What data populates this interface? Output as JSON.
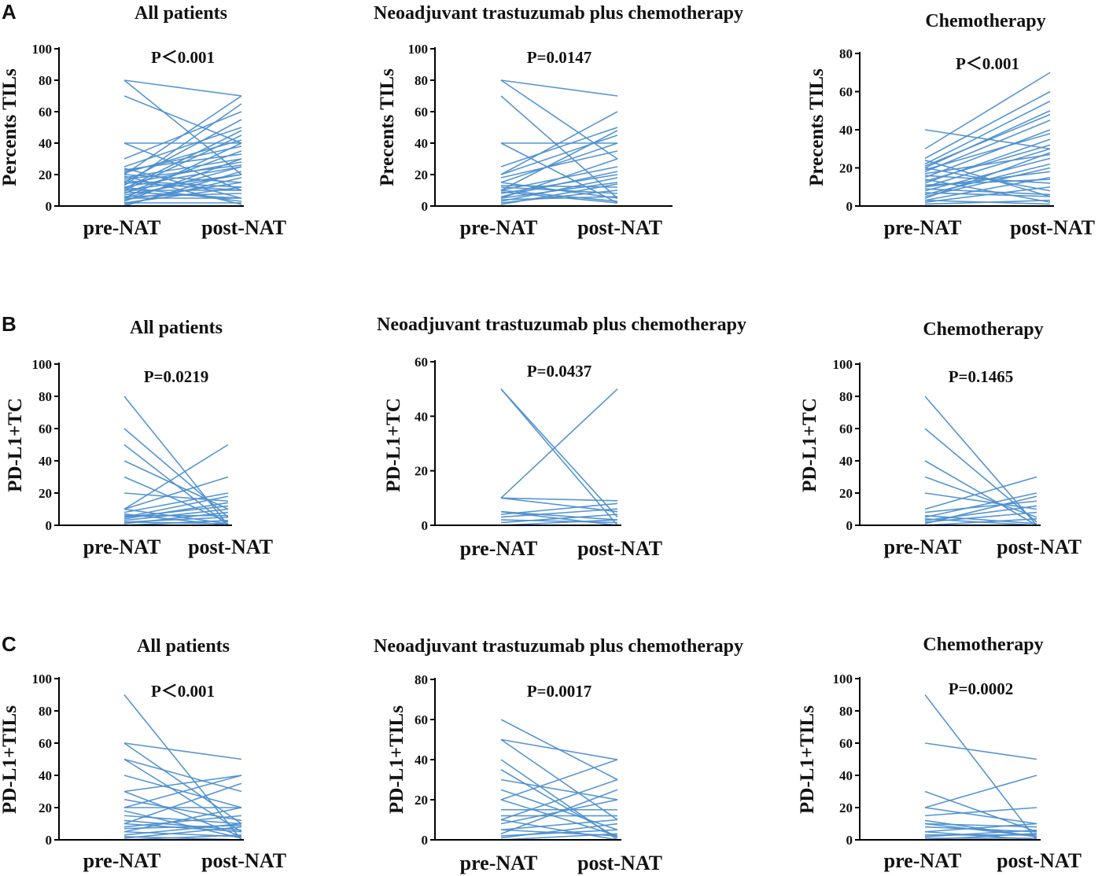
{
  "figure": {
    "rows": [
      {
        "label": "A"
      },
      {
        "label": "B"
      },
      {
        "label": "C"
      }
    ]
  },
  "chart_data": [
    {
      "type": "line",
      "row": "A",
      "title": "All patients",
      "ylabel": "Percents TILs",
      "p_value": "P＜0.001",
      "categories": [
        "pre-NAT",
        "post-NAT"
      ],
      "ylim": [
        0,
        100
      ],
      "yticks": [
        0,
        20,
        40,
        60,
        80,
        100
      ],
      "series_color": "#4d8fcf",
      "pairs": [
        [
          80,
          70
        ],
        [
          70,
          40
        ],
        [
          40,
          40
        ],
        [
          40,
          10
        ],
        [
          80,
          20
        ],
        [
          20,
          70
        ],
        [
          30,
          60
        ],
        [
          25,
          50
        ],
        [
          15,
          55
        ],
        [
          10,
          45
        ],
        [
          22,
          38
        ],
        [
          18,
          30
        ],
        [
          12,
          25
        ],
        [
          8,
          35
        ],
        [
          5,
          40
        ],
        [
          20,
          15
        ],
        [
          15,
          10
        ],
        [
          10,
          20
        ],
        [
          5,
          25
        ],
        [
          3,
          30
        ],
        [
          2,
          12
        ],
        [
          1,
          18
        ],
        [
          0,
          22
        ],
        [
          6,
          8
        ],
        [
          9,
          5
        ],
        [
          12,
          3
        ],
        [
          14,
          28
        ],
        [
          16,
          12
        ],
        [
          24,
          5
        ],
        [
          19,
          1
        ],
        [
          4,
          15
        ],
        [
          7,
          20
        ],
        [
          11,
          48
        ],
        [
          13,
          65
        ],
        [
          21,
          42
        ],
        [
          23,
          33
        ],
        [
          17,
          26
        ],
        [
          10,
          10
        ],
        [
          5,
          5
        ],
        [
          2,
          2
        ]
      ]
    },
    {
      "type": "line",
      "row": "A",
      "title": "Neoadjuvant trastuzumab plus chemotherapy",
      "ylabel": "Precents TILs",
      "p_value": "P=0.0147",
      "categories": [
        "pre-NAT",
        "post-NAT"
      ],
      "ylim": [
        0,
        100
      ],
      "yticks": [
        0,
        20,
        40,
        60,
        80,
        100
      ],
      "series_color": "#4d8fcf",
      "pairs": [
        [
          80,
          70
        ],
        [
          70,
          5
        ],
        [
          80,
          30
        ],
        [
          40,
          40
        ],
        [
          40,
          2
        ],
        [
          25,
          50
        ],
        [
          20,
          60
        ],
        [
          20,
          45
        ],
        [
          15,
          40
        ],
        [
          10,
          48
        ],
        [
          10,
          25
        ],
        [
          8,
          20
        ],
        [
          5,
          15
        ],
        [
          5,
          30
        ],
        [
          2,
          10
        ],
        [
          15,
          5
        ],
        [
          12,
          8
        ],
        [
          10,
          3
        ],
        [
          6,
          22
        ],
        [
          3,
          18
        ],
        [
          18,
          35
        ],
        [
          13,
          12
        ],
        [
          9,
          2
        ],
        [
          4,
          6
        ],
        [
          1,
          14
        ]
      ]
    },
    {
      "type": "line",
      "row": "A",
      "title": "Chemotherapy",
      "ylabel": "Precents TILs",
      "p_value": "P＜0.001",
      "categories": [
        "pre-NAT",
        "post-NAT"
      ],
      "ylim": [
        0,
        80
      ],
      "yticks": [
        0,
        20,
        40,
        60,
        80
      ],
      "series_color": "#4d8fcf",
      "pairs": [
        [
          40,
          30
        ],
        [
          30,
          70
        ],
        [
          25,
          60
        ],
        [
          22,
          55
        ],
        [
          20,
          50
        ],
        [
          18,
          45
        ],
        [
          15,
          40
        ],
        [
          12,
          35
        ],
        [
          10,
          30
        ],
        [
          8,
          25
        ],
        [
          5,
          20
        ],
        [
          3,
          15
        ],
        [
          2,
          10
        ],
        [
          24,
          5
        ],
        [
          20,
          8
        ],
        [
          16,
          12
        ],
        [
          14,
          2
        ],
        [
          10,
          18
        ],
        [
          6,
          22
        ],
        [
          4,
          28
        ],
        [
          1,
          3
        ],
        [
          7,
          5
        ],
        [
          11,
          14
        ],
        [
          13,
          32
        ],
        [
          17,
          27
        ],
        [
          19,
          38
        ],
        [
          21,
          48
        ],
        [
          9,
          6
        ],
        [
          3,
          1
        ]
      ]
    },
    {
      "type": "line",
      "row": "B",
      "title": "All patients",
      "ylabel": "PD-L1+TC",
      "p_value": "P=0.0219",
      "categories": [
        "pre-NAT",
        "post-NAT"
      ],
      "ylim": [
        0,
        100
      ],
      "yticks": [
        0,
        20,
        40,
        60,
        80,
        100
      ],
      "series_color": "#4d8fcf",
      "pairs": [
        [
          80,
          0
        ],
        [
          60,
          5
        ],
        [
          50,
          0
        ],
        [
          40,
          10
        ],
        [
          30,
          2
        ],
        [
          20,
          15
        ],
        [
          10,
          50
        ],
        [
          10,
          30
        ],
        [
          8,
          20
        ],
        [
          5,
          18
        ],
        [
          5,
          12
        ],
        [
          3,
          10
        ],
        [
          2,
          5
        ],
        [
          1,
          8
        ],
        [
          0,
          3
        ],
        [
          10,
          1
        ],
        [
          7,
          0
        ],
        [
          4,
          14
        ],
        [
          6,
          6
        ],
        [
          2,
          1
        ]
      ]
    },
    {
      "type": "line",
      "row": "B",
      "title": "Neoadjuvant trastuzumab plus chemotherapy",
      "ylabel": "PD-L1+TC",
      "p_value": "P=0.0437",
      "categories": [
        "pre-NAT",
        "post-NAT"
      ],
      "ylim": [
        0,
        60
      ],
      "yticks": [
        0,
        20,
        40,
        60
      ],
      "series_color": "#4d8fcf",
      "pairs": [
        [
          50,
          0
        ],
        [
          50,
          3
        ],
        [
          10,
          50
        ],
        [
          10,
          9
        ],
        [
          10,
          5
        ],
        [
          5,
          2
        ],
        [
          5,
          0
        ],
        [
          3,
          6
        ],
        [
          2,
          1
        ],
        [
          1,
          4
        ],
        [
          0,
          2
        ],
        [
          4,
          8
        ]
      ]
    },
    {
      "type": "line",
      "row": "B",
      "title": "Chemotherapy",
      "ylabel": "PD-L1+TC",
      "p_value": "P=0.1465",
      "categories": [
        "pre-NAT",
        "post-NAT"
      ],
      "ylim": [
        0,
        100
      ],
      "yticks": [
        0,
        20,
        40,
        60,
        80,
        100
      ],
      "series_color": "#4d8fcf",
      "pairs": [
        [
          80,
          0
        ],
        [
          60,
          2
        ],
        [
          40,
          0
        ],
        [
          30,
          5
        ],
        [
          20,
          10
        ],
        [
          10,
          30
        ],
        [
          8,
          15
        ],
        [
          5,
          20
        ],
        [
          3,
          12
        ],
        [
          2,
          8
        ],
        [
          1,
          18
        ],
        [
          0,
          4
        ],
        [
          6,
          1
        ],
        [
          4,
          0
        ]
      ]
    },
    {
      "type": "line",
      "row": "C",
      "title": "All patients",
      "ylabel": "PD-L1+TILs",
      "p_value": "P＜0.001",
      "categories": [
        "pre-NAT",
        "post-NAT"
      ],
      "ylim": [
        0,
        100
      ],
      "yticks": [
        0,
        20,
        40,
        60,
        80,
        100
      ],
      "series_color": "#4d8fcf",
      "pairs": [
        [
          90,
          0
        ],
        [
          60,
          50
        ],
        [
          60,
          10
        ],
        [
          50,
          30
        ],
        [
          50,
          5
        ],
        [
          40,
          20
        ],
        [
          30,
          40
        ],
        [
          30,
          2
        ],
        [
          20,
          40
        ],
        [
          20,
          20
        ],
        [
          15,
          10
        ],
        [
          10,
          35
        ],
        [
          10,
          5
        ],
        [
          5,
          20
        ],
        [
          5,
          2
        ],
        [
          3,
          10
        ],
        [
          2,
          0
        ],
        [
          1,
          8
        ],
        [
          0,
          3
        ],
        [
          8,
          15
        ],
        [
          12,
          6
        ],
        [
          18,
          1
        ],
        [
          25,
          12
        ],
        [
          7,
          9
        ]
      ]
    },
    {
      "type": "line",
      "row": "C",
      "title": "Neoadjuvant trastuzumab plus chemotherapy",
      "ylabel": "PD-L1+TILs",
      "p_value": "P=0.0017",
      "categories": [
        "pre-NAT",
        "post-NAT"
      ],
      "ylim": [
        0,
        80
      ],
      "yticks": [
        0,
        20,
        40,
        60,
        80
      ],
      "series_color": "#4d8fcf",
      "pairs": [
        [
          60,
          30
        ],
        [
          50,
          40
        ],
        [
          50,
          10
        ],
        [
          40,
          0
        ],
        [
          30,
          20
        ],
        [
          25,
          5
        ],
        [
          20,
          40
        ],
        [
          20,
          2
        ],
        [
          15,
          15
        ],
        [
          10,
          30
        ],
        [
          10,
          0
        ],
        [
          8,
          20
        ],
        [
          5,
          10
        ],
        [
          5,
          2
        ],
        [
          3,
          25
        ],
        [
          2,
          5
        ],
        [
          1,
          8
        ],
        [
          0,
          3
        ],
        [
          12,
          12
        ],
        [
          35,
          1
        ]
      ]
    },
    {
      "type": "line",
      "row": "C",
      "title": "Chemotherapy",
      "ylabel": "PD-L1+TILs",
      "p_value": "P=0.0002",
      "categories": [
        "pre-NAT",
        "post-NAT"
      ],
      "ylim": [
        0,
        100
      ],
      "yticks": [
        0,
        20,
        40,
        60,
        80,
        100
      ],
      "series_color": "#4d8fcf",
      "pairs": [
        [
          90,
          0
        ],
        [
          60,
          50
        ],
        [
          30,
          5
        ],
        [
          20,
          40
        ],
        [
          20,
          10
        ],
        [
          15,
          20
        ],
        [
          10,
          2
        ],
        [
          10,
          8
        ],
        [
          8,
          5
        ],
        [
          5,
          10
        ],
        [
          5,
          0
        ],
        [
          3,
          3
        ],
        [
          2,
          6
        ],
        [
          1,
          1
        ],
        [
          0,
          4
        ],
        [
          12,
          2
        ]
      ]
    }
  ]
}
